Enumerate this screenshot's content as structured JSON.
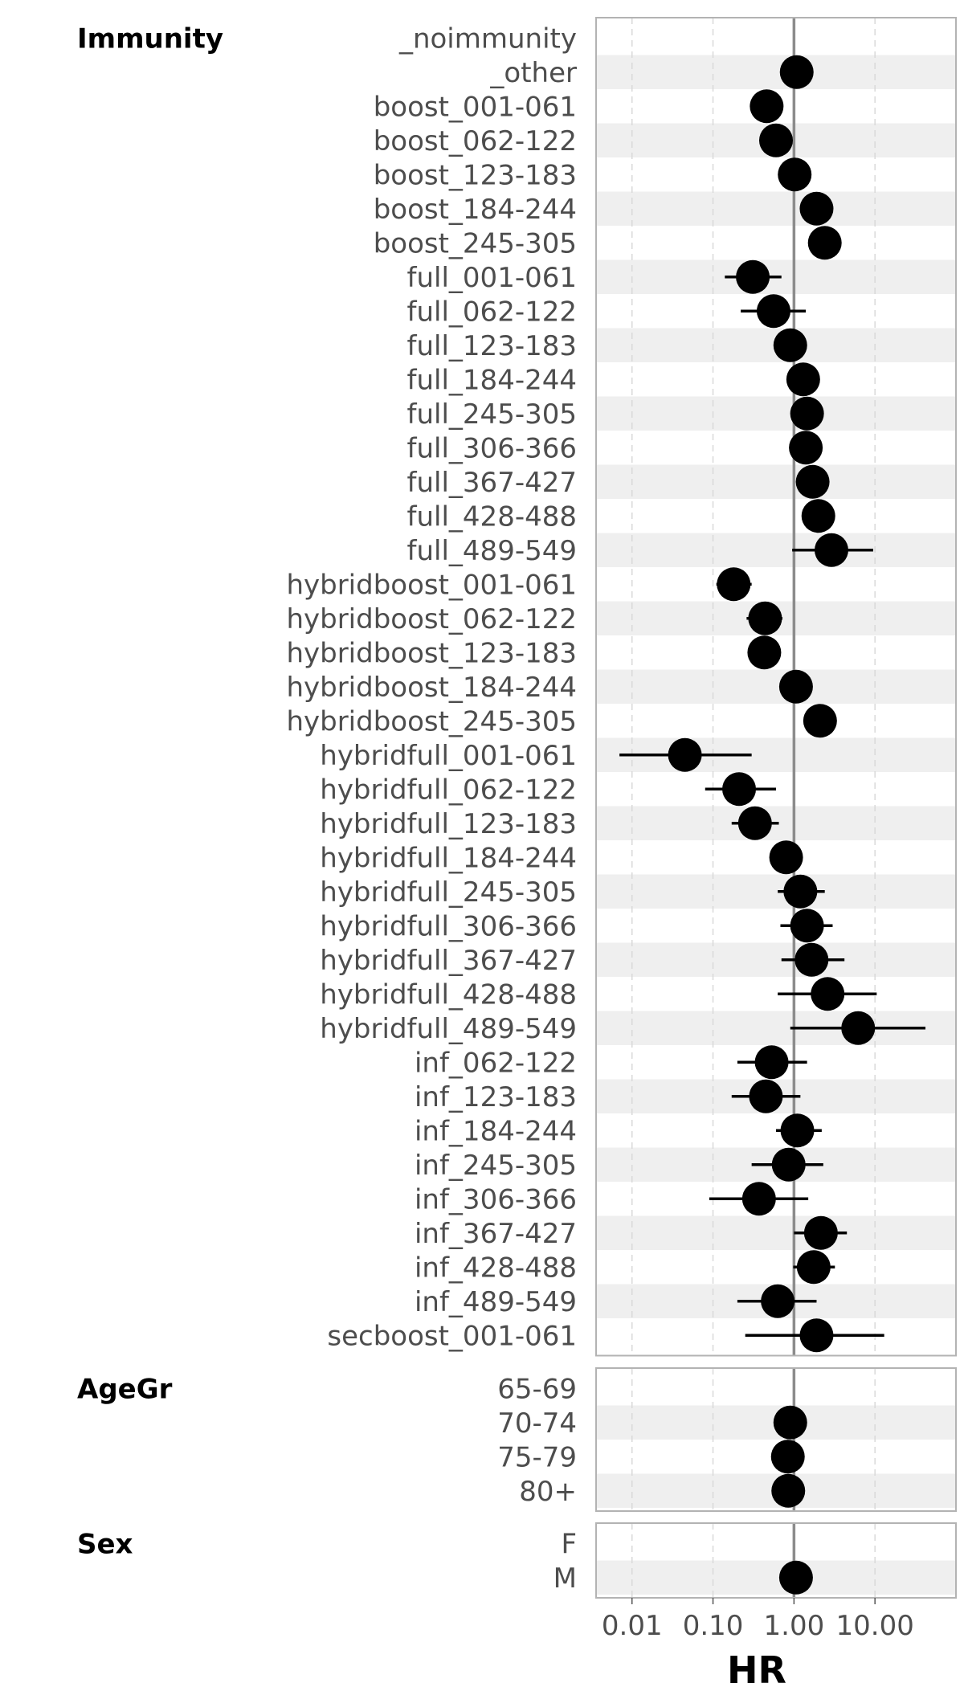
{
  "chart_data": {
    "type": "scatter",
    "x_axis": {
      "label": "HR",
      "scale": "log10",
      "range": [
        0.0036,
        100
      ],
      "ticks": [
        0.01,
        0.1,
        1,
        10
      ],
      "tick_labels": [
        "0.01",
        "0.10",
        "1.00",
        "10.00"
      ],
      "reference_line": 1,
      "grid": "dashed vertical"
    },
    "panels": [
      {
        "name": "Immunity",
        "rows": [
          {
            "label": "_noimmunity",
            "hr": null,
            "lo": null,
            "hi": null
          },
          {
            "label": "_other",
            "hr": 1.08,
            "lo": 0.72,
            "hi": 1.6
          },
          {
            "label": "boost_001-061",
            "hr": 0.46,
            "lo": 0.42,
            "hi": 0.5
          },
          {
            "label": "boost_062-122",
            "hr": 0.6,
            "lo": 0.56,
            "hi": 0.65
          },
          {
            "label": "boost_123-183",
            "hr": 1.02,
            "lo": 0.98,
            "hi": 1.06
          },
          {
            "label": "boost_184-244",
            "hr": 1.9,
            "lo": 1.8,
            "hi": 2.0
          },
          {
            "label": "boost_245-305",
            "hr": 2.4,
            "lo": 2.25,
            "hi": 2.55
          },
          {
            "label": "full_001-061",
            "hr": 0.31,
            "lo": 0.14,
            "hi": 0.7
          },
          {
            "label": "full_062-122",
            "hr": 0.56,
            "lo": 0.22,
            "hi": 1.4
          },
          {
            "label": "full_123-183",
            "hr": 0.9,
            "lo": 0.8,
            "hi": 1.0
          },
          {
            "label": "full_184-244",
            "hr": 1.3,
            "lo": 1.2,
            "hi": 1.45
          },
          {
            "label": "full_245-305",
            "hr": 1.45,
            "lo": 1.35,
            "hi": 1.55
          },
          {
            "label": "full_306-366",
            "hr": 1.4,
            "lo": 1.3,
            "hi": 1.5
          },
          {
            "label": "full_367-427",
            "hr": 1.7,
            "lo": 1.55,
            "hi": 1.85
          },
          {
            "label": "full_428-488",
            "hr": 2.0,
            "lo": 1.25,
            "hi": 3.2
          },
          {
            "label": "full_489-549",
            "hr": 2.9,
            "lo": 0.95,
            "hi": 9.5
          },
          {
            "label": "hybridboost_001-061",
            "hr": 0.18,
            "lo": 0.11,
            "hi": 0.3
          },
          {
            "label": "hybridboost_062-122",
            "hr": 0.44,
            "lo": 0.26,
            "hi": 0.72
          },
          {
            "label": "hybridboost_123-183",
            "hr": 0.43,
            "lo": 0.3,
            "hi": 0.6
          },
          {
            "label": "hybridboost_184-244",
            "hr": 1.06,
            "lo": 0.95,
            "hi": 1.18
          },
          {
            "label": "hybridboost_245-305",
            "hr": 2.1,
            "lo": 1.35,
            "hi": 3.3
          },
          {
            "label": "hybridfull_001-061",
            "hr": 0.045,
            "lo": 0.007,
            "hi": 0.3
          },
          {
            "label": "hybridfull_062-122",
            "hr": 0.21,
            "lo": 0.08,
            "hi": 0.6
          },
          {
            "label": "hybridfull_123-183",
            "hr": 0.33,
            "lo": 0.17,
            "hi": 0.65
          },
          {
            "label": "hybridfull_184-244",
            "hr": 0.8,
            "lo": 0.52,
            "hi": 1.18
          },
          {
            "label": "hybridfull_245-305",
            "hr": 1.2,
            "lo": 0.63,
            "hi": 2.4
          },
          {
            "label": "hybridfull_306-366",
            "hr": 1.45,
            "lo": 0.68,
            "hi": 3.0
          },
          {
            "label": "hybridfull_367-427",
            "hr": 1.65,
            "lo": 0.7,
            "hi": 4.2
          },
          {
            "label": "hybridfull_428-488",
            "hr": 2.6,
            "lo": 0.63,
            "hi": 10.5
          },
          {
            "label": "hybridfull_489-549",
            "hr": 6.2,
            "lo": 0.9,
            "hi": 42
          },
          {
            "label": "inf_062-122",
            "hr": 0.53,
            "lo": 0.2,
            "hi": 1.45
          },
          {
            "label": "inf_123-183",
            "hr": 0.45,
            "lo": 0.17,
            "hi": 1.2
          },
          {
            "label": "inf_184-244",
            "hr": 1.1,
            "lo": 0.6,
            "hi": 2.2
          },
          {
            "label": "inf_245-305",
            "hr": 0.86,
            "lo": 0.3,
            "hi": 2.3
          },
          {
            "label": "inf_306-366",
            "hr": 0.37,
            "lo": 0.09,
            "hi": 1.5
          },
          {
            "label": "inf_367-427",
            "hr": 2.15,
            "lo": 1.0,
            "hi": 4.5
          },
          {
            "label": "inf_428-488",
            "hr": 1.75,
            "lo": 0.98,
            "hi": 3.2
          },
          {
            "label": "inf_489-549",
            "hr": 0.63,
            "lo": 0.2,
            "hi": 1.9
          },
          {
            "label": "secboost_001-061",
            "hr": 1.9,
            "lo": 0.25,
            "hi": 13
          }
        ]
      },
      {
        "name": "AgeGr",
        "rows": [
          {
            "label": "65-69",
            "hr": null,
            "lo": null,
            "hi": null
          },
          {
            "label": "70-74",
            "hr": 0.9,
            "lo": 0.88,
            "hi": 0.92
          },
          {
            "label": "75-79",
            "hr": 0.84,
            "lo": 0.82,
            "hi": 0.86
          },
          {
            "label": "80+",
            "hr": 0.85,
            "lo": 0.83,
            "hi": 0.87
          }
        ]
      },
      {
        "name": "Sex",
        "rows": [
          {
            "label": "F",
            "hr": null,
            "lo": null,
            "hi": null
          },
          {
            "label": "M",
            "hr": 1.06,
            "lo": 1.04,
            "hi": 1.08
          }
        ]
      }
    ],
    "colors": {
      "point": "#000000",
      "stripe": "#efefef",
      "reference_line": "#8c8c8c",
      "grid": "#d9d9d9",
      "panel_border": "#b3b3b3",
      "label_text": "#4d4d4d"
    }
  }
}
